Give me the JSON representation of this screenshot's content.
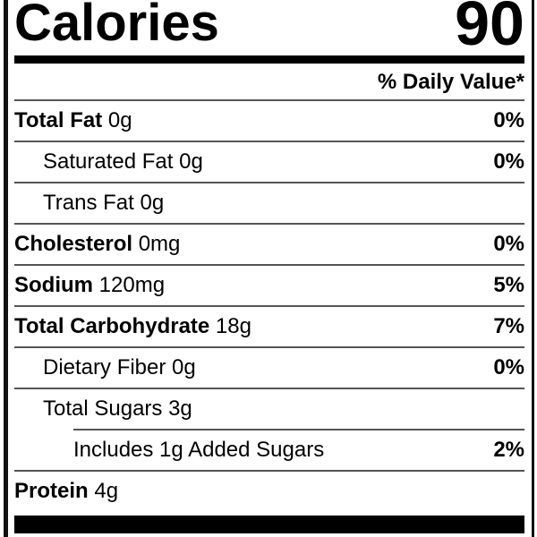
{
  "calories": {
    "label": "Calories",
    "value": "90"
  },
  "daily_value_header": "% Daily Value*",
  "rows": [
    {
      "name": "Total Fat",
      "amount": "0g",
      "dv": "0%",
      "bold": true,
      "indent": 0
    },
    {
      "name": "Saturated Fat",
      "amount": "0g",
      "dv": "0%",
      "bold": false,
      "indent": 1
    },
    {
      "name": "Trans Fat",
      "amount": "0g",
      "dv": null,
      "bold": false,
      "indent": 1
    },
    {
      "name": "Cholesterol",
      "amount": "0mg",
      "dv": "0%",
      "bold": true,
      "indent": 0
    },
    {
      "name": "Sodium",
      "amount": "120mg",
      "dv": "5%",
      "bold": true,
      "indent": 0
    },
    {
      "name": "Total Carbohydrate",
      "amount": "18g",
      "dv": "7%",
      "bold": true,
      "indent": 0
    },
    {
      "name": "Dietary Fiber",
      "amount": "0g",
      "dv": "0%",
      "bold": false,
      "indent": 1
    },
    {
      "name": "Total Sugars",
      "amount": "3g",
      "dv": null,
      "bold": false,
      "indent": 1
    },
    {
      "name": "Includes 1g Added Sugars",
      "amount": null,
      "dv": "2%",
      "bold": false,
      "indent": 2
    },
    {
      "name": "Protein",
      "amount": "4g",
      "dv": null,
      "bold": true,
      "indent": 0
    }
  ]
}
